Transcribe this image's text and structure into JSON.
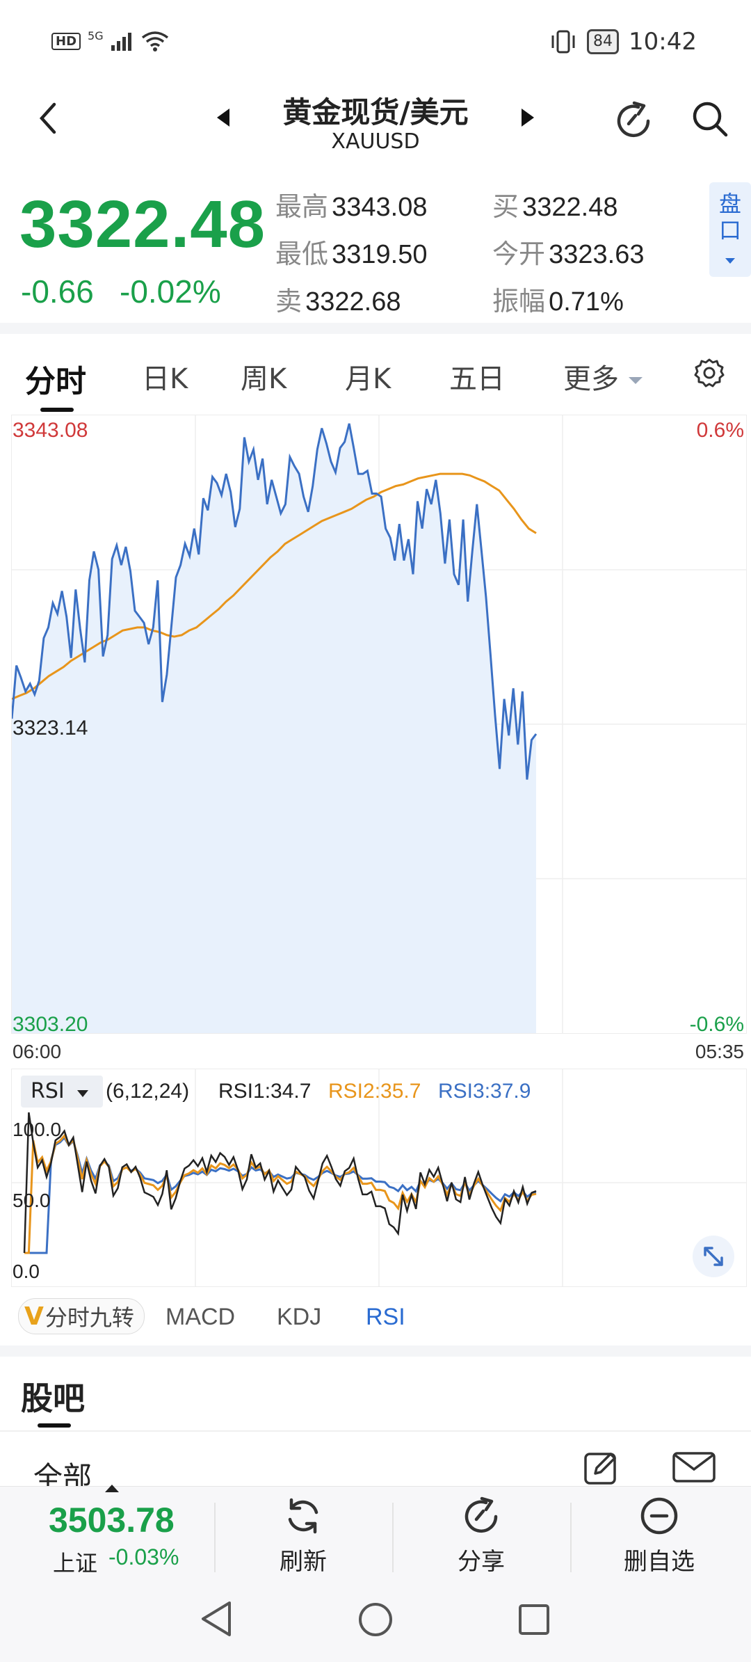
{
  "status_bar": {
    "network": "HD",
    "signal": "5G",
    "battery": "84",
    "time": "10:42",
    "icons": [
      "signal-icon",
      "wifi-icon",
      "vibrate-icon",
      "battery-icon"
    ]
  },
  "header": {
    "title": "黄金现货/美元",
    "symbol": "XAUUSD"
  },
  "quote": {
    "price": "3322.48",
    "change": "-0.66",
    "change_pct": "-0.02%",
    "high_label": "最高",
    "high": "3343.08",
    "low_label": "最低",
    "low": "3319.50",
    "sell_label": "卖",
    "sell": "3322.68",
    "buy_label": "买",
    "buy": "3322.48",
    "open_label": "今开",
    "open": "3323.63",
    "amp_label": "振幅",
    "amp": "0.71%",
    "pankou_label": "盘口",
    "colors": {
      "down": "#1aa04a",
      "up": "#d0393a"
    }
  },
  "tabs": [
    "分时",
    "日K",
    "周K",
    "月K",
    "五日",
    "更多"
  ],
  "chart": {
    "y_top": "3343.08",
    "y_mid": "3323.14",
    "y_bottom": "3303.20",
    "pct_top": "0.6%",
    "pct_bottom": "-0.6%",
    "time_start": "06:00",
    "time_end": "05:35"
  },
  "chart_data": {
    "type": "line",
    "ylim": [
      3303.2,
      3343.08
    ],
    "reference": 3323.14,
    "series": [
      {
        "values": [
          3323.5,
          3327.0,
          3326.2,
          3325.3,
          3325.8,
          3325.1,
          3326.0,
          3328.8,
          3329.5,
          3331.1,
          3330.4,
          3331.9,
          3330.2,
          3327.5,
          3332.0,
          3329.4,
          3327.2,
          3332.6,
          3334.5,
          3333.3,
          3327.6,
          3329.0,
          3334.0,
          3334.9,
          3333.6,
          3334.8,
          3333.2,
          3330.6,
          3330.2,
          3329.8,
          3328.4,
          3329.5,
          3332.6,
          3324.6,
          3326.4,
          3329.6,
          3332.8,
          3333.6,
          3335.0,
          3334.2,
          3336.0,
          3334.3,
          3338.0,
          3337.2,
          3339.4,
          3339.0,
          3338.2,
          3339.6,
          3338.4,
          3336.1,
          3337.3,
          3342.0,
          3340.4,
          3341.2,
          3339.2,
          3340.6,
          3337.6,
          3339.2,
          3338.1,
          3337.0,
          3337.6,
          3340.7,
          3340.1,
          3339.6,
          3338.1,
          3337.1,
          3338.8,
          3341.2,
          3342.6,
          3341.6,
          3340.4,
          3339.7,
          3341.3,
          3341.7,
          3342.9,
          3341.3,
          3339.6,
          3339.6,
          3339.8,
          3338.3,
          3338.3,
          3338.1,
          3336.0,
          3335.4,
          3333.9,
          3336.3,
          3333.9,
          3335.3,
          3333.0,
          3337.8,
          3336.0,
          3338.6,
          3337.6,
          3339.2,
          3337.0,
          3333.7,
          3336.6,
          3333.0,
          3332.3,
          3336.6,
          3331.2,
          3334.5,
          3337.6,
          3334.6,
          3331.5,
          3327.7,
          3323.7,
          3320.2,
          3324.8,
          3322.4,
          3325.5,
          3321.8,
          3325.3,
          3319.5,
          3322.1,
          3322.5
        ]
      },
      {
        "values": [
          3324.8,
          3325.0,
          3325.2,
          3325.5,
          3325.9,
          3326.3,
          3326.6,
          3326.9,
          3327.3,
          3327.6,
          3327.9,
          3328.2,
          3328.5,
          3328.7,
          3329.0,
          3329.3,
          3329.4,
          3329.5,
          3329.5,
          3329.3,
          3329.2,
          3329.0,
          3328.9,
          3329.0,
          3329.3,
          3329.5,
          3329.9,
          3330.3,
          3330.7,
          3331.2,
          3331.6,
          3332.1,
          3332.6,
          3333.1,
          3333.6,
          3334.1,
          3334.5,
          3335.0,
          3335.3,
          3335.6,
          3335.9,
          3336.2,
          3336.5,
          3336.7,
          3336.9,
          3337.1,
          3337.3,
          3337.6,
          3337.9,
          3338.1,
          3338.4,
          3338.6,
          3338.8,
          3338.9,
          3339.1,
          3339.3,
          3339.4,
          3339.5,
          3339.6,
          3339.6,
          3339.6,
          3339.6,
          3339.5,
          3339.3,
          3339.1,
          3338.8,
          3338.5,
          3337.9,
          3337.3,
          3336.6,
          3336.0,
          3335.7
        ]
      }
    ]
  },
  "rsi": {
    "tag": "RSI",
    "params": "(6,12,24)",
    "rsi1": "RSI1:34.7",
    "rsi2": "RSI2:35.7",
    "rsi3": "RSI3:37.9",
    "y100": "100.0",
    "y50": "50.0",
    "y0": "0.0",
    "colors": {
      "rsi1": "#222222",
      "rsi2": "#e8951b",
      "rsi3": "#3b70c4"
    }
  },
  "indicator_tabs": {
    "nine": "分时九转",
    "nine_badge": "V",
    "macd": "MACD",
    "kdj": "KDJ",
    "rsi": "RSI"
  },
  "guba": {
    "title": "股吧",
    "all": "全部"
  },
  "bottom_bar": {
    "index_value": "3503.78",
    "index_name": "上证",
    "index_change": "-0.03%",
    "refresh": "刷新",
    "share": "分享",
    "remove": "删自选"
  }
}
